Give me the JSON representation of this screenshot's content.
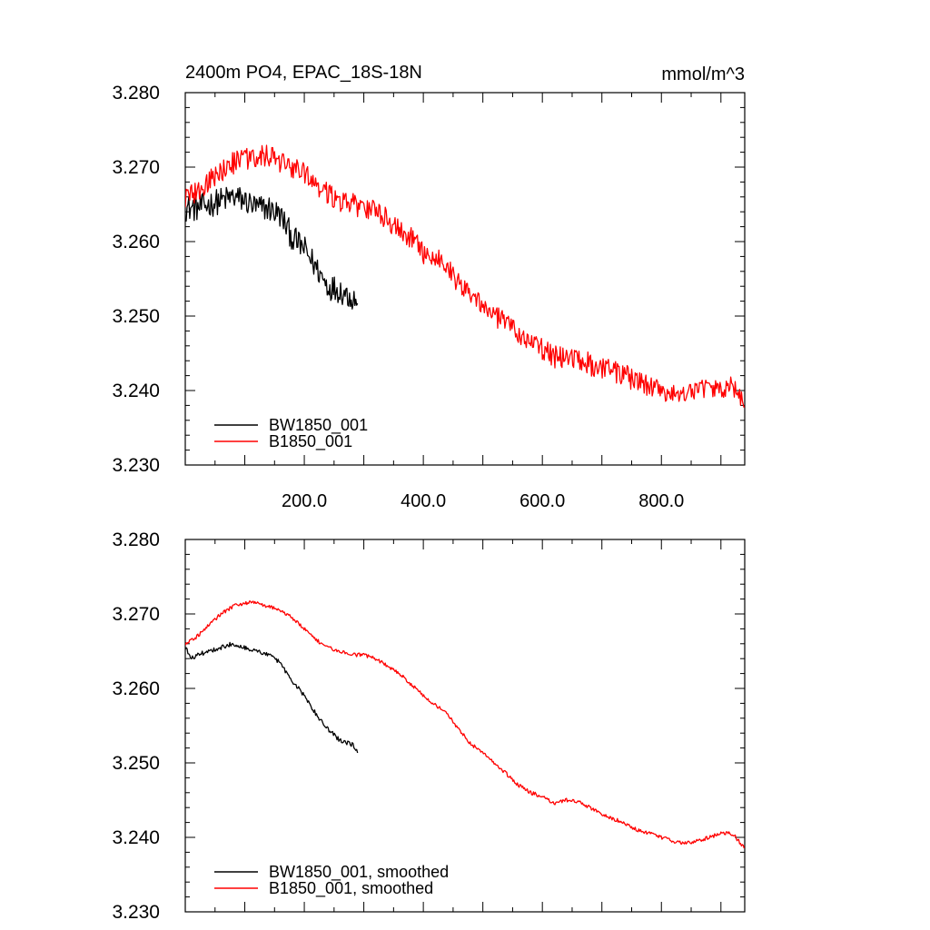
{
  "chart_data": [
    {
      "type": "line",
      "title": "2400m PO4, EPAC_18S-18N",
      "units": "mmol/m^3",
      "xlim": [
        0,
        940
      ],
      "ylim": [
        3.23,
        3.28
      ],
      "xticks": [
        200,
        400,
        600,
        800
      ],
      "xtick_labels": [
        "200.0",
        "400.0",
        "600.0",
        "800.0"
      ],
      "yticks": [
        3.23,
        3.24,
        3.25,
        3.26,
        3.27,
        3.28
      ],
      "ytick_labels": [
        "3.230",
        "3.240",
        "3.250",
        "3.260",
        "3.270",
        "3.280"
      ],
      "legend_position": "bottom-left",
      "series": [
        {
          "name": "BW1850_001",
          "color": "#000000",
          "noise": 0.0018,
          "x": [
            0,
            20,
            40,
            60,
            80,
            100,
            120,
            140,
            160,
            170,
            180,
            200,
            220,
            240,
            260,
            280,
            290
          ],
          "y": [
            3.2645,
            3.2645,
            3.265,
            3.2655,
            3.266,
            3.2655,
            3.2645,
            3.2645,
            3.2635,
            3.262,
            3.2605,
            3.259,
            3.2565,
            3.254,
            3.2535,
            3.2525,
            3.252
          ]
        },
        {
          "name": "B1850_001",
          "color": "#ff0000",
          "noise": 0.0015,
          "x": [
            0,
            20,
            40,
            60,
            80,
            100,
            120,
            140,
            160,
            180,
            200,
            220,
            240,
            260,
            280,
            300,
            320,
            340,
            360,
            380,
            400,
            420,
            440,
            460,
            480,
            500,
            520,
            540,
            560,
            580,
            600,
            620,
            640,
            660,
            680,
            700,
            720,
            740,
            760,
            780,
            800,
            820,
            840,
            860,
            880,
            900,
            920,
            940
          ],
          "y": [
            3.266,
            3.2665,
            3.268,
            3.2695,
            3.2705,
            3.271,
            3.2715,
            3.2715,
            3.2705,
            3.27,
            3.269,
            3.2675,
            3.2665,
            3.2655,
            3.265,
            3.2645,
            3.264,
            3.263,
            3.2615,
            3.2605,
            3.2585,
            3.258,
            3.2565,
            3.2545,
            3.253,
            3.2515,
            3.25,
            3.249,
            3.2475,
            3.2465,
            3.2455,
            3.2445,
            3.2445,
            3.2445,
            3.2435,
            3.243,
            3.2425,
            3.242,
            3.241,
            3.2405,
            3.24,
            3.2395,
            3.2395,
            3.24,
            3.24,
            3.2405,
            3.2405,
            3.2385
          ]
        }
      ]
    },
    {
      "type": "line",
      "title": "",
      "units": "",
      "xlim": [
        0,
        940
      ],
      "ylim": [
        3.23,
        3.28
      ],
      "xticks": [
        200,
        400,
        600,
        800
      ],
      "xtick_labels": [],
      "yticks": [
        3.23,
        3.24,
        3.25,
        3.26,
        3.27,
        3.28
      ],
      "ytick_labels": [
        "3.230",
        "3.240",
        "3.250",
        "3.260",
        "3.270",
        "3.280"
      ],
      "legend_position": "bottom-left",
      "series": [
        {
          "name": "BW1850_001, smoothed",
          "color": "#000000",
          "noise": 0.0003,
          "x": [
            0,
            10,
            20,
            40,
            60,
            80,
            100,
            120,
            140,
            160,
            170,
            180,
            200,
            220,
            240,
            260,
            280,
            290
          ],
          "y": [
            3.2655,
            3.264,
            3.2645,
            3.265,
            3.2655,
            3.266,
            3.2655,
            3.265,
            3.2645,
            3.2635,
            3.262,
            3.261,
            3.259,
            3.2565,
            3.2545,
            3.253,
            3.2525,
            3.2515
          ]
        },
        {
          "name": "B1850_001, smoothed",
          "color": "#ff0000",
          "noise": 0.00025,
          "x": [
            0,
            20,
            40,
            60,
            80,
            100,
            120,
            140,
            160,
            180,
            200,
            220,
            240,
            260,
            280,
            300,
            320,
            340,
            360,
            380,
            400,
            420,
            440,
            460,
            480,
            500,
            520,
            540,
            560,
            580,
            600,
            620,
            640,
            660,
            680,
            700,
            720,
            740,
            760,
            780,
            800,
            820,
            840,
            860,
            880,
            900,
            920,
            940
          ],
          "y": [
            3.266,
            3.267,
            3.2685,
            3.27,
            3.271,
            3.2715,
            3.2715,
            3.271,
            3.2705,
            3.2695,
            3.268,
            3.2665,
            3.2655,
            3.265,
            3.2645,
            3.2645,
            3.264,
            3.263,
            3.262,
            3.2605,
            3.259,
            3.2578,
            3.2565,
            3.2545,
            3.2525,
            3.2515,
            3.25,
            3.2485,
            3.247,
            3.246,
            3.2455,
            3.2445,
            3.245,
            3.2448,
            3.244,
            3.243,
            3.2425,
            3.2418,
            3.241,
            3.2405,
            3.24,
            3.2395,
            3.2392,
            3.2395,
            3.24,
            3.2405,
            3.2405,
            3.2385
          ]
        }
      ]
    }
  ]
}
